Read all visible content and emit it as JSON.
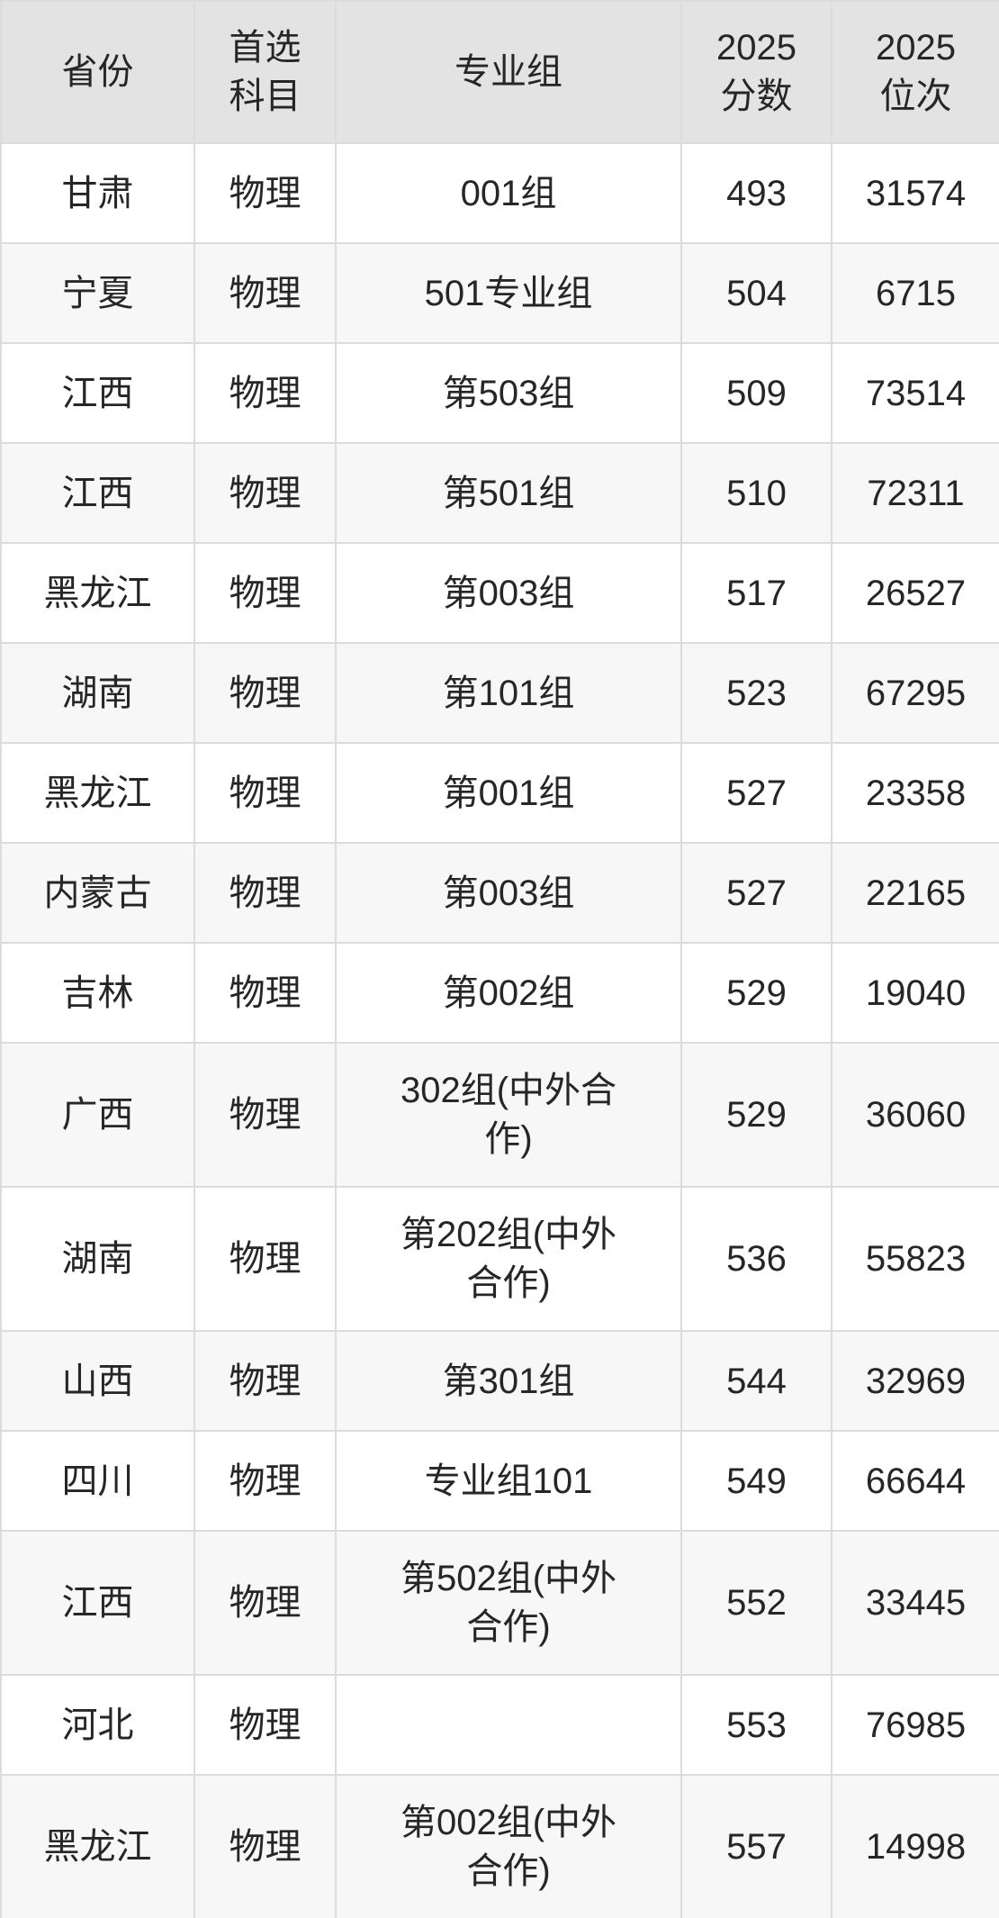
{
  "chart_data": {
    "type": "table",
    "columns": [
      "省份",
      "首选\n科目",
      "专业组",
      "2025\n分数",
      "2025\n位次"
    ],
    "column_keys": [
      "province",
      "subject",
      "group",
      "score",
      "rank"
    ],
    "rows": [
      [
        "甘肃",
        "物理",
        "001组",
        "493",
        "31574"
      ],
      [
        "宁夏",
        "物理",
        "501专业组",
        "504",
        "6715"
      ],
      [
        "江西",
        "物理",
        "第503组",
        "509",
        "73514"
      ],
      [
        "江西",
        "物理",
        "第501组",
        "510",
        "72311"
      ],
      [
        "黑龙江",
        "物理",
        "第003组",
        "517",
        "26527"
      ],
      [
        "湖南",
        "物理",
        "第101组",
        "523",
        "67295"
      ],
      [
        "黑龙江",
        "物理",
        "第001组",
        "527",
        "23358"
      ],
      [
        "内蒙古",
        "物理",
        "第003组",
        "527",
        "22165"
      ],
      [
        "吉林",
        "物理",
        "第002组",
        "529",
        "19040"
      ],
      [
        "广西",
        "物理",
        "302组(中外合\n作)",
        "529",
        "36060"
      ],
      [
        "湖南",
        "物理",
        "第202组(中外\n合作)",
        "536",
        "55823"
      ],
      [
        "山西",
        "物理",
        "第301组",
        "544",
        "32969"
      ],
      [
        "四川",
        "物理",
        "专业组101",
        "549",
        "66644"
      ],
      [
        "江西",
        "物理",
        "第502组(中外\n合作)",
        "552",
        "33445"
      ],
      [
        "河北",
        "物理",
        "",
        "553",
        "76985"
      ],
      [
        "黑龙江",
        "物理",
        "第002组(中外\n合作)",
        "557",
        "14998"
      ]
    ],
    "layout": {
      "grid": true,
      "striped": true,
      "first_striped_row_index": 1
    }
  },
  "colors": {
    "header_bg": "#e3e3e3",
    "row_even_bg": "#f7f7f7",
    "row_odd_bg": "#ffffff",
    "border": "#dcdcdc",
    "text": "#262626"
  }
}
